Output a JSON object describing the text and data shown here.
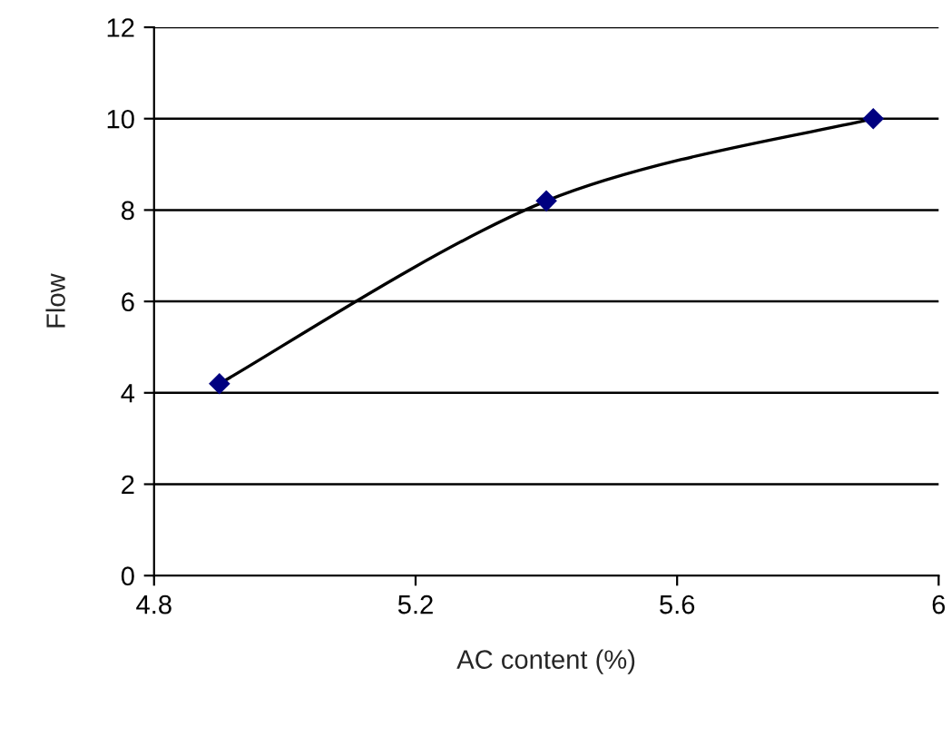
{
  "chart_data": {
    "type": "line",
    "xlabel": "AC content (%)",
    "ylabel": "Flow",
    "x": [
      4.9,
      5.4,
      5.9
    ],
    "series": [
      {
        "color": "#000000",
        "marker": "none",
        "values": [
          4.2,
          8.2,
          10
        ]
      },
      {
        "type": "scatter",
        "color": "#000080",
        "marker": "diamond",
        "values": [
          4.2,
          8.2,
          10
        ]
      }
    ],
    "xlim": [
      4.8,
      6
    ],
    "xticks": [
      4.8,
      5.2,
      5.6,
      6
    ],
    "ylim": [
      0,
      12
    ],
    "yticks": [
      0,
      2,
      4,
      6,
      8,
      10,
      12
    ],
    "grid": "y"
  }
}
